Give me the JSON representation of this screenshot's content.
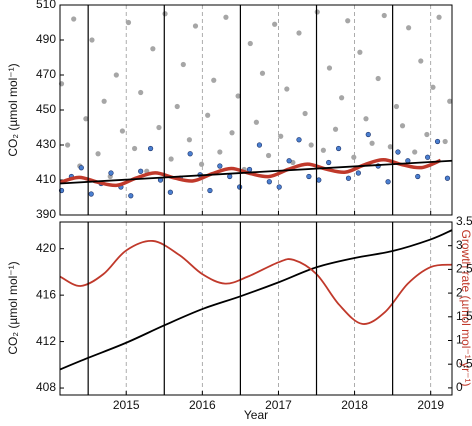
{
  "chart_data": [
    {
      "type": "scatter",
      "ylabel": "CO₂ (µmol mol⁻¹)",
      "xlim": [
        2014.13,
        2019.28
      ],
      "ylim": [
        390,
        510
      ],
      "yticks": [
        390,
        410,
        430,
        450,
        470,
        490,
        510
      ],
      "xticks": [
        2015,
        2016,
        2017,
        2018,
        2019
      ],
      "xlines": [
        2014.5,
        2015.5,
        2016.5,
        2017.5,
        2018.5
      ],
      "series": [
        {
          "color": "#a6a6a6",
          "x": [
            2014.15,
            2014.23,
            2014.31,
            2014.39,
            2014.47,
            2014.55,
            2014.63,
            2014.71,
            2014.79,
            2014.87,
            2014.95,
            2015.03,
            2015.11,
            2015.19,
            2015.27,
            2015.35,
            2015.43,
            2015.51,
            2015.59,
            2015.67,
            2015.75,
            2015.83,
            2015.91,
            2015.99,
            2016.07,
            2016.15,
            2016.23,
            2016.31,
            2016.39,
            2016.47,
            2016.55,
            2016.63,
            2016.71,
            2016.79,
            2016.87,
            2016.95,
            2017.03,
            2017.11,
            2017.19,
            2017.27,
            2017.35,
            2017.43,
            2017.51,
            2017.59,
            2017.67,
            2017.75,
            2017.83,
            2017.91,
            2017.99,
            2018.07,
            2018.15,
            2018.23,
            2018.31,
            2018.39,
            2018.47,
            2018.55,
            2018.63,
            2018.71,
            2018.79,
            2018.87,
            2018.95,
            2019.03,
            2019.11,
            2019.19,
            2019.25
          ],
          "values": [
            465,
            430,
            502,
            418,
            445,
            490,
            425,
            455,
            412,
            470,
            438,
            500,
            428,
            460,
            415,
            485,
            440,
            505,
            422,
            452,
            476,
            433,
            498,
            419,
            447,
            467,
            426,
            503,
            437,
            458,
            416,
            488,
            443,
            471,
            424,
            499,
            435,
            462,
            420,
            494,
            448,
            430,
            506,
            427,
            474,
            439,
            457,
            501,
            423,
            483,
            445,
            431,
            468,
            504,
            429,
            452,
            441,
            497,
            426,
            478,
            436,
            463,
            503,
            432,
            455
          ]
        },
        {
          "color": "#4a7fd0",
          "x": [
            2014.15,
            2014.28,
            2014.41,
            2014.54,
            2014.67,
            2014.8,
            2014.93,
            2015.06,
            2015.19,
            2015.32,
            2015.45,
            2015.58,
            2015.71,
            2015.84,
            2015.97,
            2016.1,
            2016.23,
            2016.36,
            2016.49,
            2016.62,
            2016.75,
            2016.88,
            2017.01,
            2017.14,
            2017.27,
            2017.4,
            2017.53,
            2017.66,
            2017.79,
            2017.92,
            2018.05,
            2018.18,
            2018.31,
            2018.44,
            2018.57,
            2018.7,
            2018.83,
            2018.96,
            2019.09,
            2019.22
          ],
          "values": [
            404,
            412,
            417,
            402,
            408,
            414,
            406,
            401,
            415,
            428,
            410,
            403,
            411,
            425,
            413,
            404,
            418,
            412,
            406,
            416,
            430,
            409,
            406,
            421,
            433,
            412,
            410,
            420,
            428,
            411,
            414,
            436,
            418,
            409,
            426,
            421,
            412,
            423,
            432,
            411
          ]
        },
        {
          "type": "line",
          "color": "#c0392b",
          "x": [
            2014.13,
            2014.38,
            2014.63,
            2014.88,
            2015.13,
            2015.38,
            2015.63,
            2015.88,
            2016.13,
            2016.38,
            2016.63,
            2016.88,
            2017.13,
            2017.38,
            2017.63,
            2017.88,
            2018.13,
            2018.38,
            2018.63,
            2018.88,
            2019.13
          ],
          "values": [
            408.6,
            411.5,
            408.7,
            407.0,
            411.1,
            414.1,
            411.2,
            409.5,
            413.6,
            416.6,
            413.7,
            412.0,
            416.1,
            419.1,
            416.2,
            414.5,
            418.7,
            421.6,
            418.7,
            417.1,
            421.2
          ]
        },
        {
          "type": "line",
          "color": "#000000",
          "x": [
            2014.13,
            2019.28
          ],
          "values": [
            408,
            421
          ]
        }
      ]
    },
    {
      "type": "line",
      "ylabel": "CO₂ (µmol mol⁻¹)",
      "y2label": "Growth rate (µmol mol⁻¹ yr⁻¹)",
      "xlabel": "Year",
      "xlim": [
        2014.13,
        2019.28
      ],
      "ylim": [
        407.4,
        422.3
      ],
      "yticks": [
        408,
        412,
        416,
        420
      ],
      "y2lim": [
        -0.15,
        3.5
      ],
      "y2ticks": [
        0,
        0.5,
        1,
        1.5,
        2,
        2.5,
        3,
        3.5
      ],
      "xticks": [
        2015,
        2016,
        2017,
        2018,
        2019
      ],
      "xlines": [
        2014.5,
        2015.5,
        2016.5,
        2017.5,
        2018.5
      ],
      "series": [
        {
          "color": "#000000",
          "x": [
            2014.13,
            2014.5,
            2015,
            2015.5,
            2016,
            2016.5,
            2017,
            2017.5,
            2018,
            2018.5,
            2019,
            2019.28
          ],
          "values": [
            409.6,
            410.6,
            411.9,
            413.4,
            414.8,
            415.9,
            417.1,
            418.4,
            419.2,
            419.8,
            420.8,
            421.6
          ]
        },
        {
          "color": "#c0392b",
          "axis": "y2",
          "x": [
            2014.13,
            2014.4,
            2014.7,
            2015,
            2015.35,
            2015.7,
            2016,
            2016.3,
            2016.6,
            2017,
            2017.2,
            2017.5,
            2017.8,
            2018.1,
            2018.4,
            2018.7,
            2019,
            2019.28
          ],
          "values": [
            2.35,
            2.15,
            2.4,
            2.9,
            3.1,
            2.8,
            2.4,
            2.2,
            2.35,
            2.65,
            2.7,
            2.4,
            1.75,
            1.35,
            1.6,
            2.2,
            2.55,
            2.6
          ]
        }
      ]
    }
  ]
}
